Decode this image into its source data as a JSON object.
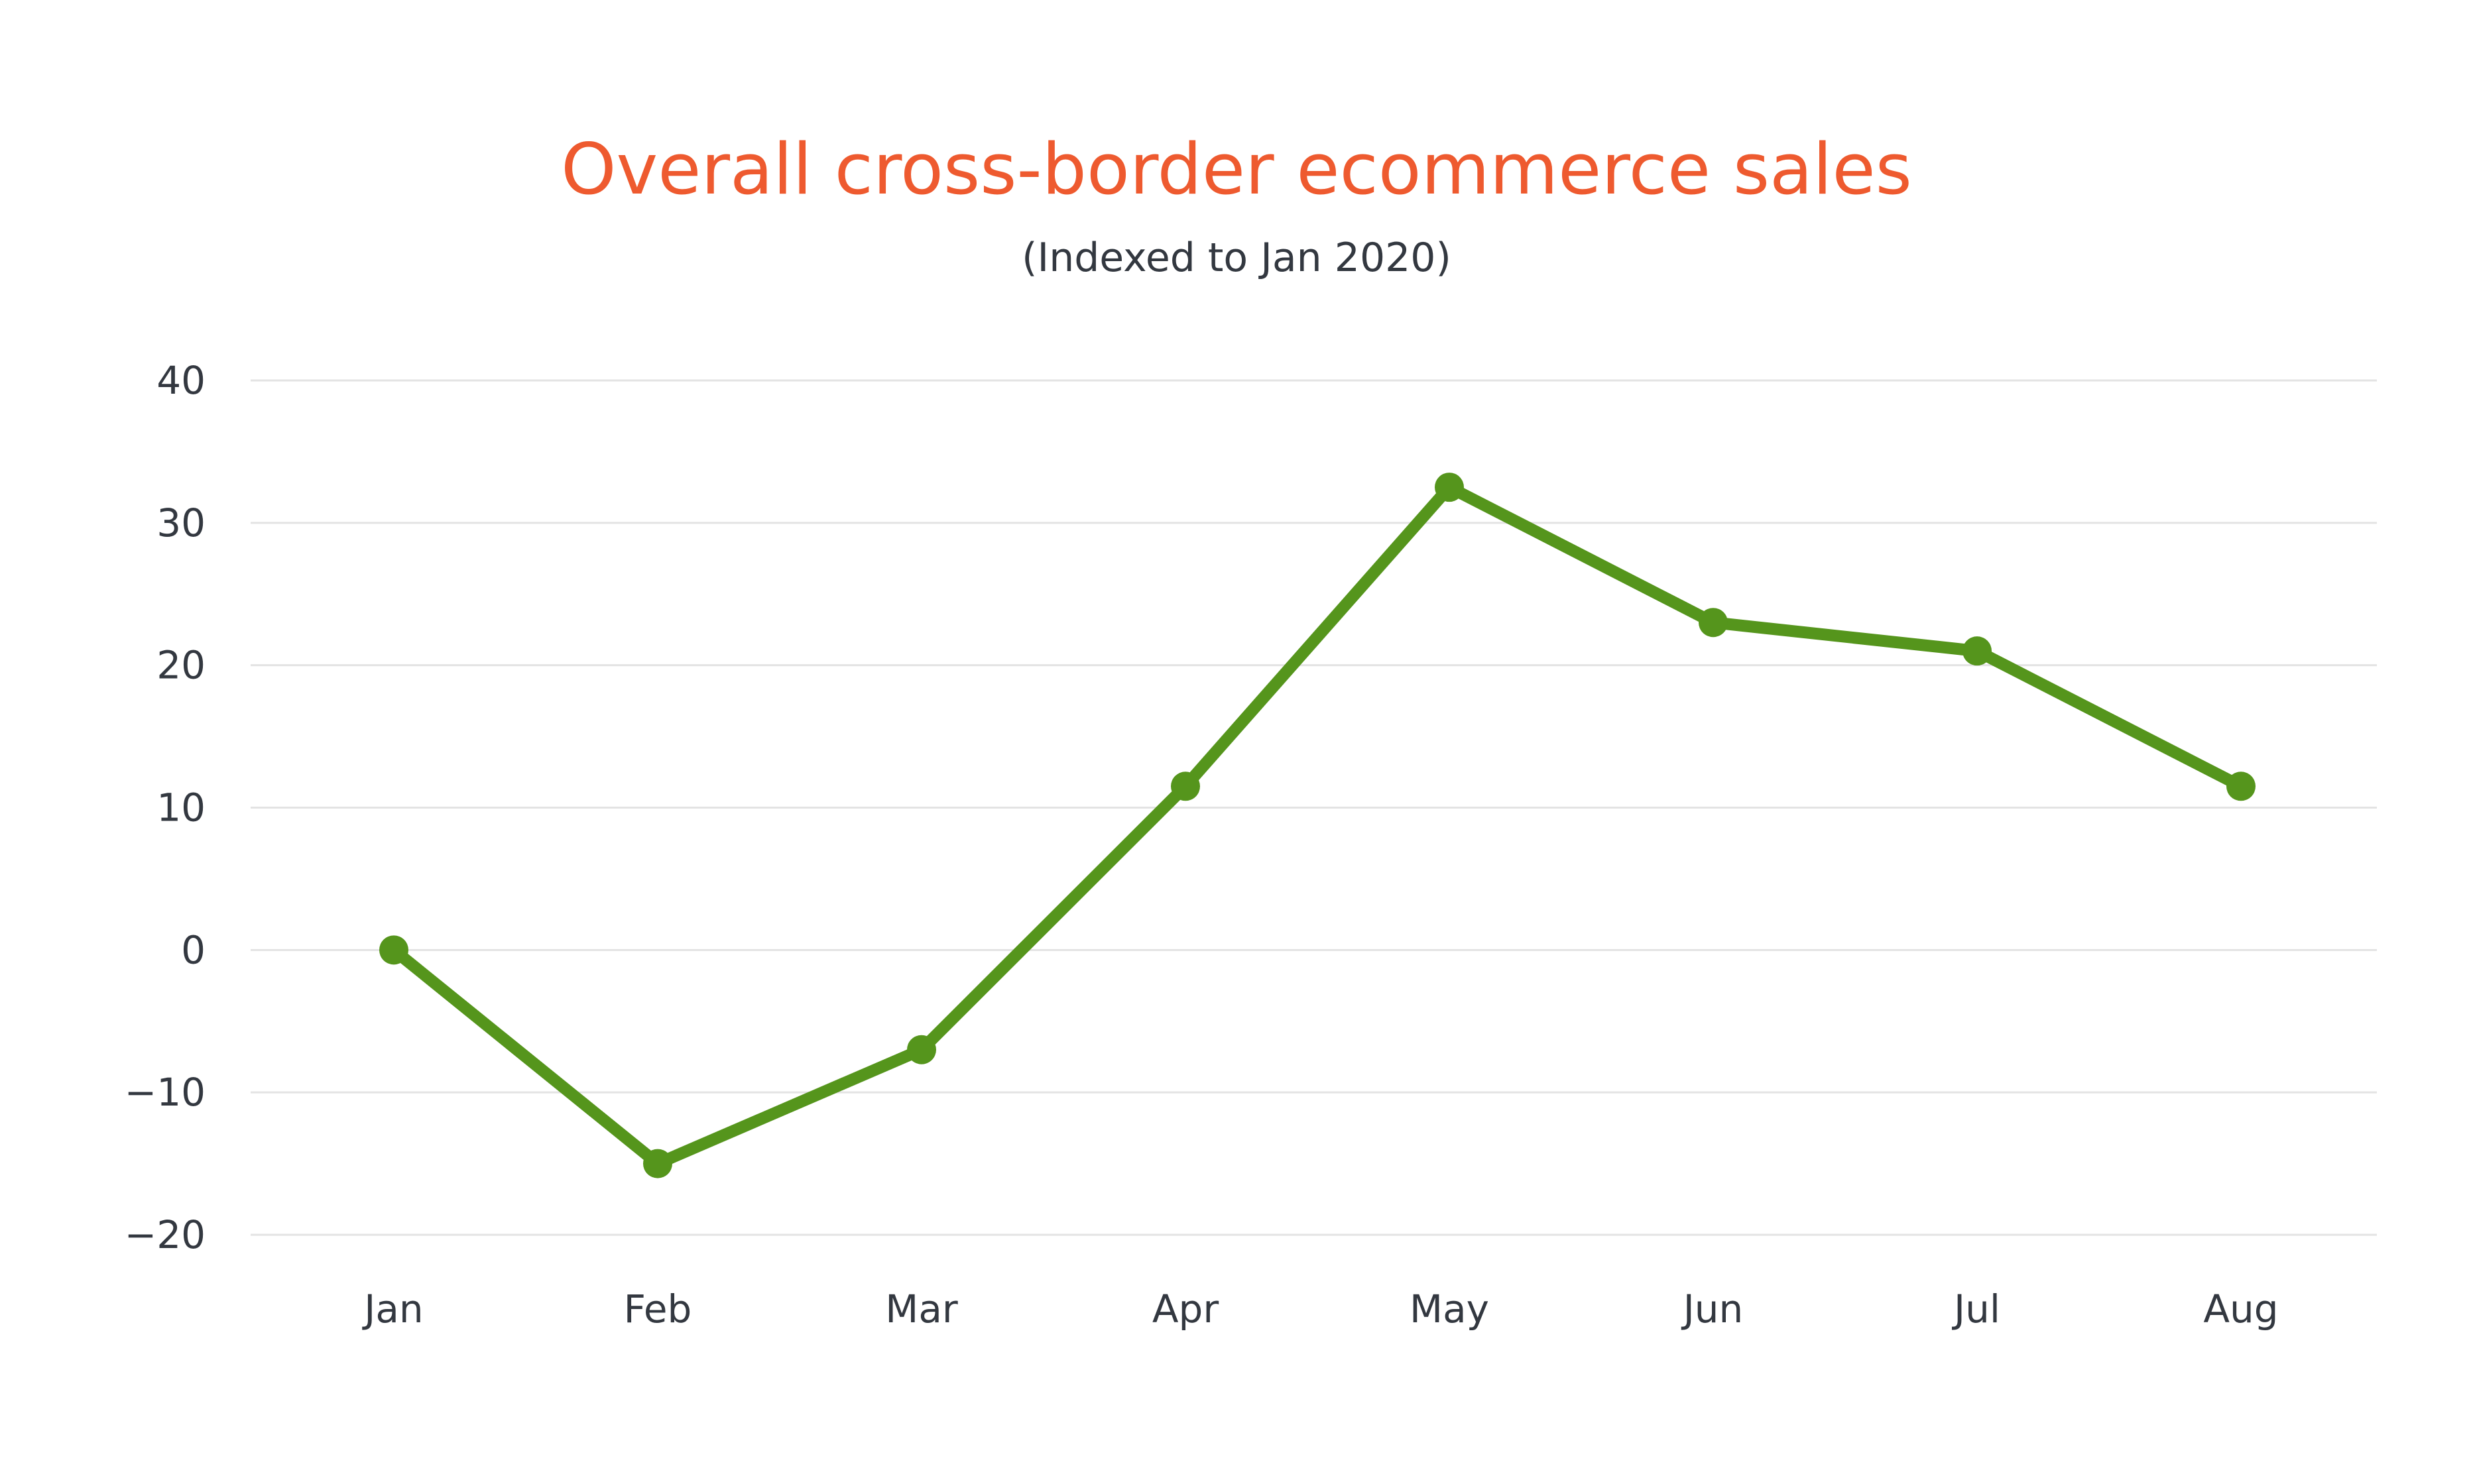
{
  "chart_data": {
    "type": "line",
    "title": "Overall cross-border ecommerce sales",
    "subtitle": "(Indexed to Jan 2020)",
    "xlabel": "",
    "ylabel": "",
    "categories": [
      "Jan",
      "Feb",
      "Mar",
      "Apr",
      "May",
      "Jun",
      "Jul",
      "Aug"
    ],
    "series": [
      {
        "values": [
          0,
          -15,
          -7,
          11.5,
          32.5,
          23,
          21,
          11.5
        ]
      }
    ],
    "yticks": [
      "40",
      "30",
      "20",
      "10",
      "0",
      "−10",
      "−20"
    ],
    "ylim": [
      -20,
      40
    ],
    "grid": true,
    "legend": "none",
    "colors": {
      "title": "#ee5a2f",
      "line": "#55951c",
      "grid": "#e3e3e3",
      "text": "#333840"
    }
  }
}
